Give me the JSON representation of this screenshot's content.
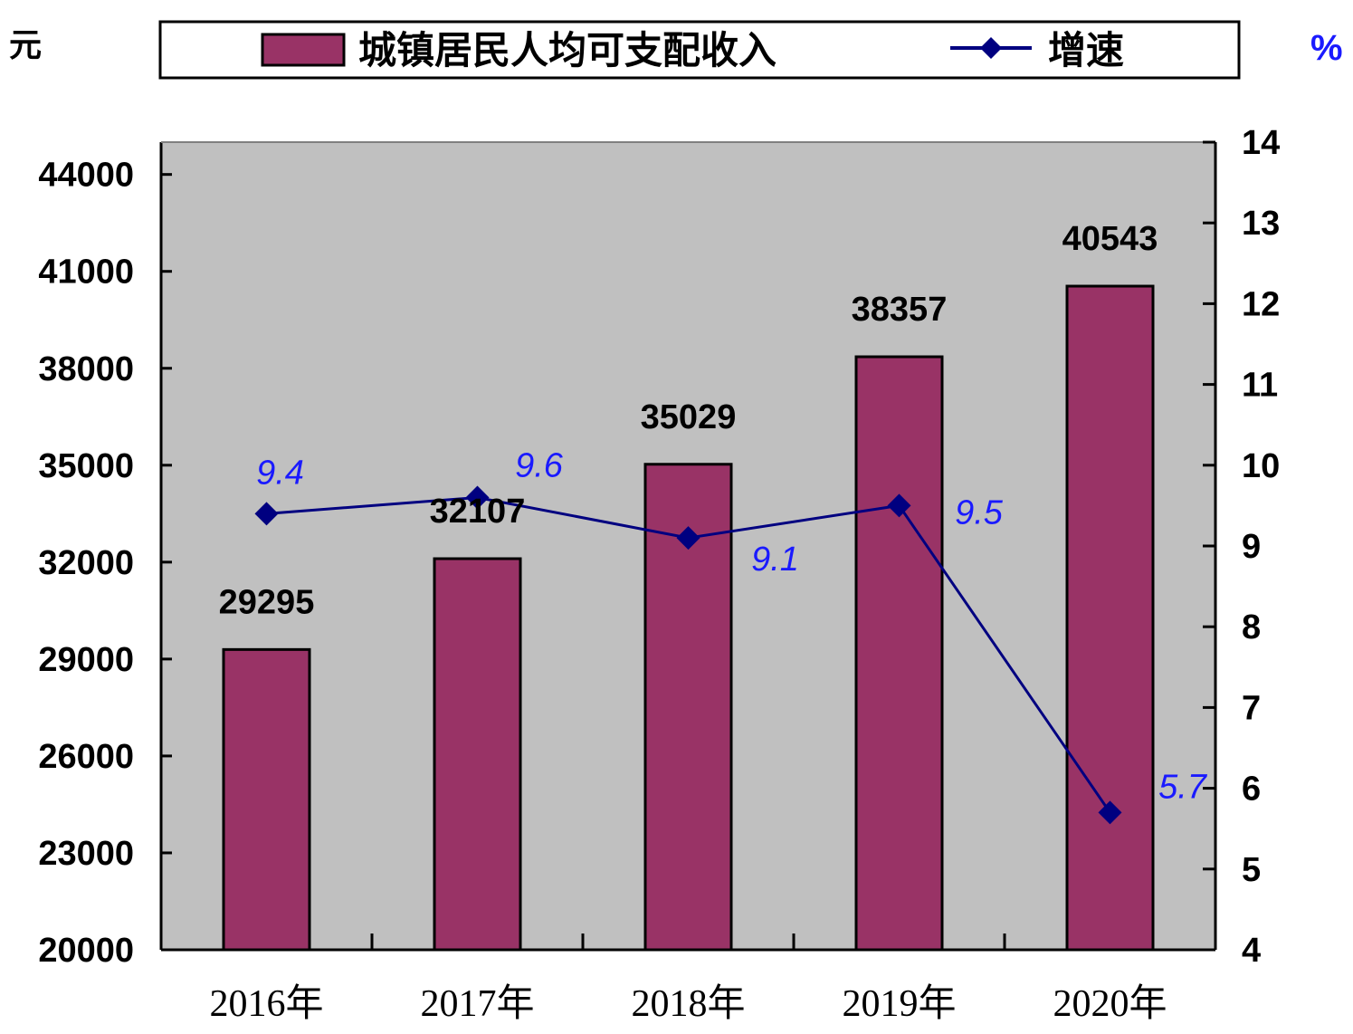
{
  "chart_data": {
    "type": "bar",
    "categories": [
      "2016年",
      "2017年",
      "2018年",
      "2019年",
      "2020年"
    ],
    "series": [
      {
        "name": "城镇居民人均可支配收入",
        "type": "bar",
        "axis": "left",
        "values": [
          29295,
          32107,
          35029,
          38357,
          40543
        ],
        "color": "#993366"
      },
      {
        "name": "增速",
        "type": "line",
        "axis": "right",
        "values": [
          9.4,
          9.6,
          9.1,
          9.5,
          5.7
        ],
        "color": "#000080",
        "label_color": "#1a1aff"
      }
    ],
    "left_axis": {
      "unit": "元",
      "range": [
        20000,
        45000
      ],
      "ticks": [
        20000,
        23000,
        26000,
        29000,
        32000,
        35000,
        38000,
        41000,
        44000
      ]
    },
    "right_axis": {
      "unit": "%",
      "range": [
        4,
        14
      ],
      "ticks": [
        4,
        5,
        6,
        7,
        8,
        9,
        10,
        11,
        12,
        13,
        14
      ]
    },
    "plot_background": "#c0c0c0",
    "grid": false,
    "legend_position": "top"
  }
}
